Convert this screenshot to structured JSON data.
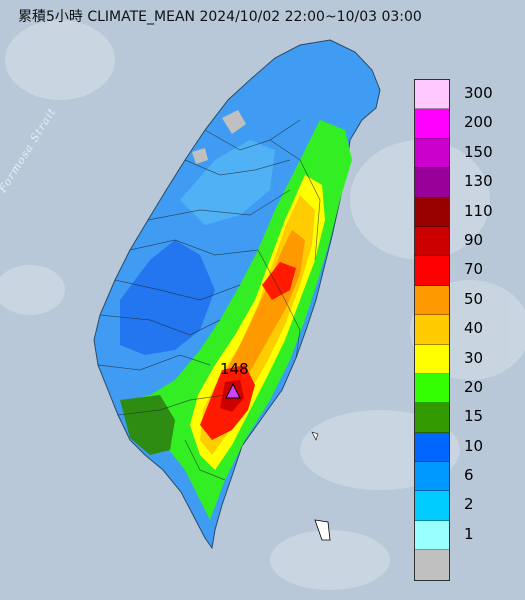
{
  "title": "累積5小時 CLIMATE_MEAN 2024/10/02 22:00~10/03 03:00",
  "strait_label": "Formosa Strait",
  "peak_label": "148",
  "legend": [
    {
      "label": "300",
      "color": "#ffc8ff"
    },
    {
      "label": "200",
      "color": "#ff00ff"
    },
    {
      "label": "150",
      "color": "#cc00cc"
    },
    {
      "label": "130",
      "color": "#990099"
    },
    {
      "label": "110",
      "color": "#990000"
    },
    {
      "label": "90",
      "color": "#cc0000"
    },
    {
      "label": "70",
      "color": "#ff0000"
    },
    {
      "label": "50",
      "color": "#ff9900"
    },
    {
      "label": "40",
      "color": "#ffcc00"
    },
    {
      "label": "30",
      "color": "#ffff00"
    },
    {
      "label": "20",
      "color": "#33ff00"
    },
    {
      "label": "15",
      "color": "#339900"
    },
    {
      "label": "10",
      "color": "#0066ff"
    },
    {
      "label": "6",
      "color": "#0099ff"
    },
    {
      "label": "2",
      "color": "#00ccff"
    },
    {
      "label": "1",
      "color": "#99ffff"
    },
    {
      "label": "",
      "color": "#c0c0c0"
    }
  ]
}
